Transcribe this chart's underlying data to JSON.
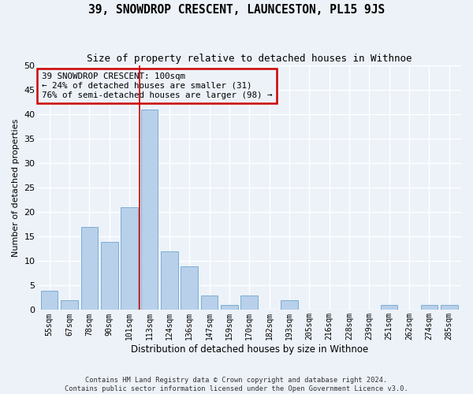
{
  "title1": "39, SNOWDROP CRESCENT, LAUNCESTON, PL15 9JS",
  "title2": "Size of property relative to detached houses in Withnoe",
  "xlabel": "Distribution of detached houses by size in Withnoe",
  "ylabel": "Number of detached properties",
  "footer": "Contains HM Land Registry data © Crown copyright and database right 2024.\nContains public sector information licensed under the Open Government Licence v3.0.",
  "bin_labels": [
    "55sqm",
    "67sqm",
    "78sqm",
    "90sqm",
    "101sqm",
    "113sqm",
    "124sqm",
    "136sqm",
    "147sqm",
    "159sqm",
    "170sqm",
    "182sqm",
    "193sqm",
    "205sqm",
    "216sqm",
    "228sqm",
    "239sqm",
    "251sqm",
    "262sqm",
    "274sqm",
    "285sqm"
  ],
  "bar_values": [
    4,
    2,
    17,
    14,
    21,
    41,
    12,
    9,
    3,
    1,
    3,
    0,
    2,
    0,
    0,
    0,
    0,
    1,
    0,
    1,
    1
  ],
  "bar_color": "#b8d0ea",
  "bar_edge_color": "#7aaed4",
  "background_color": "#edf2f9",
  "grid_color": "#ffffff",
  "vline_x_index": 4.5,
  "vline_color": "#cc0000",
  "annotation_text": "39 SNOWDROP CRESCENT: 100sqm\n← 24% of detached houses are smaller (31)\n76% of semi-detached houses are larger (98) →",
  "annotation_box_color": "#cc0000",
  "ylim": [
    0,
    50
  ],
  "yticks": [
    0,
    5,
    10,
    15,
    20,
    25,
    30,
    35,
    40,
    45,
    50
  ]
}
